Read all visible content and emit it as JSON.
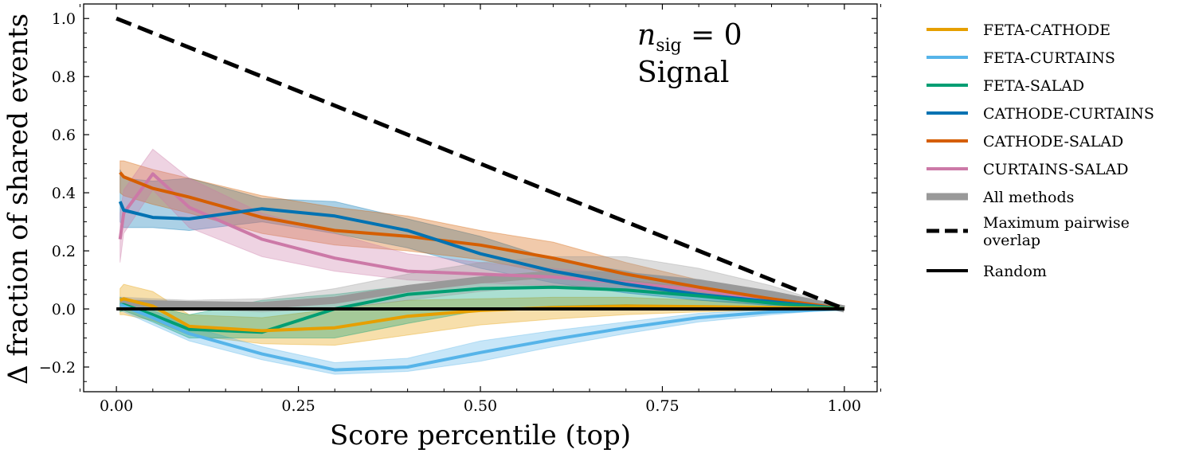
{
  "chart_data": {
    "type": "line",
    "xlabel": "Score percentile (top)",
    "ylabel": "Δ fraction of shared events",
    "xlim": [
      -0.045,
      1.045
    ],
    "ylim": [
      -0.285,
      1.05
    ],
    "xticks": [
      0.0,
      0.25,
      0.5,
      0.75,
      1.0
    ],
    "xtick_labels": [
      "0.00",
      "0.25",
      "0.50",
      "0.75",
      "1.00"
    ],
    "yticks": [
      -0.2,
      0.0,
      0.2,
      0.4,
      0.6,
      0.8,
      1.0
    ],
    "ytick_labels": [
      "−0.2",
      "0.0",
      "0.2",
      "0.4",
      "0.6",
      "0.8",
      "1.0"
    ],
    "annotation": {
      "line1_var": "n",
      "line1_sub": "sig",
      "line1_rest": " = 0",
      "line2": "Signal"
    },
    "grid": false,
    "legend_position": "outside-right",
    "series": [
      {
        "name": "FETA-CATHODE",
        "color": "#E69F00",
        "x": [
          0.005,
          0.01,
          0.05,
          0.1,
          0.2,
          0.3,
          0.4,
          0.5,
          0.6,
          0.7,
          0.8,
          0.9,
          1.0
        ],
        "y": [
          0.03,
          0.035,
          0.01,
          -0.06,
          -0.075,
          -0.065,
          -0.025,
          -0.005,
          0.005,
          0.01,
          0.008,
          0.005,
          0.0
        ],
        "lower": [
          -0.02,
          -0.02,
          -0.04,
          -0.09,
          -0.12,
          -0.125,
          -0.09,
          -0.055,
          -0.035,
          -0.02,
          -0.01,
          -0.005,
          0.0
        ],
        "upper": [
          0.07,
          0.085,
          0.06,
          -0.02,
          -0.03,
          0.0,
          0.03,
          0.035,
          0.04,
          0.04,
          0.03,
          0.02,
          0.0
        ]
      },
      {
        "name": "FETA-CURTAINS",
        "color": "#56B4E9",
        "x": [
          0.005,
          0.01,
          0.05,
          0.1,
          0.2,
          0.3,
          0.4,
          0.5,
          0.6,
          0.7,
          0.8,
          0.9,
          1.0
        ],
        "y": [
          0.015,
          0.01,
          -0.03,
          -0.085,
          -0.155,
          -0.21,
          -0.2,
          -0.15,
          -0.105,
          -0.065,
          -0.03,
          -0.01,
          0.0
        ],
        "lower": [
          -0.005,
          -0.01,
          -0.055,
          -0.11,
          -0.175,
          -0.225,
          -0.215,
          -0.18,
          -0.13,
          -0.085,
          -0.045,
          -0.02,
          0.0
        ],
        "upper": [
          0.03,
          0.03,
          -0.005,
          -0.06,
          -0.13,
          -0.185,
          -0.17,
          -0.11,
          -0.075,
          -0.045,
          -0.015,
          -0.002,
          0.0
        ]
      },
      {
        "name": "FETA-SALAD",
        "color": "#009E73",
        "x": [
          0.005,
          0.01,
          0.05,
          0.1,
          0.2,
          0.3,
          0.4,
          0.5,
          0.6,
          0.7,
          0.8,
          0.9,
          1.0
        ],
        "y": [
          0.015,
          0.015,
          -0.02,
          -0.07,
          -0.08,
          0.0,
          0.05,
          0.07,
          0.075,
          0.065,
          0.045,
          0.02,
          0.0
        ],
        "lower": [
          -0.01,
          -0.005,
          -0.045,
          -0.1,
          -0.1,
          -0.1,
          -0.05,
          -0.005,
          0.01,
          0.015,
          0.01,
          0.005,
          0.0
        ],
        "upper": [
          0.04,
          0.035,
          0.01,
          -0.02,
          0.03,
          0.05,
          0.08,
          0.1,
          0.11,
          0.1,
          0.075,
          0.04,
          0.0
        ]
      },
      {
        "name": "CATHODE-CURTAINS",
        "color": "#0072B2",
        "x": [
          0.005,
          0.01,
          0.05,
          0.1,
          0.2,
          0.3,
          0.4,
          0.5,
          0.6,
          0.7,
          0.8,
          0.9,
          1.0
        ],
        "y": [
          0.37,
          0.34,
          0.315,
          0.31,
          0.345,
          0.32,
          0.27,
          0.19,
          0.13,
          0.085,
          0.05,
          0.025,
          0.0
        ],
        "lower": [
          0.3,
          0.28,
          0.28,
          0.27,
          0.3,
          0.26,
          0.21,
          0.14,
          0.09,
          0.055,
          0.03,
          0.012,
          0.0
        ],
        "upper": [
          0.48,
          0.45,
          0.44,
          0.45,
          0.38,
          0.37,
          0.31,
          0.25,
          0.17,
          0.13,
          0.075,
          0.04,
          0.0
        ]
      },
      {
        "name": "CATHODE-SALAD",
        "color": "#D55E00",
        "x": [
          0.005,
          0.01,
          0.05,
          0.1,
          0.2,
          0.3,
          0.4,
          0.5,
          0.6,
          0.7,
          0.8,
          0.9,
          1.0
        ],
        "y": [
          0.47,
          0.455,
          0.415,
          0.385,
          0.315,
          0.27,
          0.25,
          0.22,
          0.175,
          0.12,
          0.075,
          0.035,
          0.0
        ],
        "lower": [
          0.4,
          0.39,
          0.36,
          0.33,
          0.26,
          0.22,
          0.2,
          0.17,
          0.12,
          0.08,
          0.045,
          0.02,
          0.0
        ],
        "upper": [
          0.51,
          0.51,
          0.48,
          0.45,
          0.39,
          0.35,
          0.32,
          0.27,
          0.23,
          0.16,
          0.1,
          0.05,
          0.0
        ]
      },
      {
        "name": "CURTAINS-SALAD",
        "color": "#CC79A7",
        "x": [
          0.005,
          0.01,
          0.05,
          0.1,
          0.2,
          0.3,
          0.4,
          0.5,
          0.6,
          0.7,
          0.8,
          0.9,
          1.0
        ],
        "y": [
          0.24,
          0.33,
          0.465,
          0.35,
          0.24,
          0.175,
          0.13,
          0.12,
          0.11,
          0.09,
          0.065,
          0.03,
          0.0
        ],
        "lower": [
          0.16,
          0.26,
          0.41,
          0.28,
          0.18,
          0.13,
          0.1,
          0.09,
          0.08,
          0.065,
          0.045,
          0.02,
          0.0
        ],
        "upper": [
          0.33,
          0.41,
          0.55,
          0.45,
          0.33,
          0.26,
          0.19,
          0.16,
          0.14,
          0.12,
          0.09,
          0.045,
          0.0
        ]
      },
      {
        "name": "All methods",
        "color": "#999999",
        "x": [
          0.005,
          0.01,
          0.05,
          0.1,
          0.2,
          0.3,
          0.4,
          0.5,
          0.6,
          0.7,
          0.8,
          0.9,
          1.0
        ],
        "y": [
          0.02,
          0.02,
          0.018,
          0.015,
          0.012,
          0.03,
          0.07,
          0.1,
          0.12,
          0.115,
          0.09,
          0.05,
          0.0
        ],
        "lower": [
          0.0,
          0.0,
          0.0,
          0.0,
          -0.01,
          0.0,
          0.03,
          0.06,
          0.08,
          0.075,
          0.055,
          0.03,
          0.0
        ],
        "upper": [
          0.04,
          0.04,
          0.035,
          0.03,
          0.035,
          0.07,
          0.12,
          0.16,
          0.18,
          0.18,
          0.14,
          0.08,
          0.0
        ]
      },
      {
        "name": "Maximum pairwise overlap",
        "color": "#000000",
        "style": "dashed",
        "x": [
          0.0,
          1.0
        ],
        "y": [
          1.0,
          0.0
        ]
      },
      {
        "name": "Random",
        "color": "#000000",
        "style": "solid",
        "x": [
          0.0,
          1.0
        ],
        "y": [
          0.0,
          0.0
        ]
      }
    ],
    "legend": [
      {
        "label": "FETA-CATHODE",
        "lines": [
          "FETA-CATHODE"
        ],
        "color": "#E69F00",
        "style": "solid"
      },
      {
        "label": "FETA-CURTAINS",
        "lines": [
          "FETA-CURTAINS"
        ],
        "color": "#56B4E9",
        "style": "solid"
      },
      {
        "label": "FETA-SALAD",
        "lines": [
          "FETA-SALAD"
        ],
        "color": "#009E73",
        "style": "solid"
      },
      {
        "label": "CATHODE-CURTAINS",
        "lines": [
          "CATHODE-CURTAINS"
        ],
        "color": "#0072B2",
        "style": "solid"
      },
      {
        "label": "CATHODE-SALAD",
        "lines": [
          "CATHODE-SALAD"
        ],
        "color": "#D55E00",
        "style": "solid"
      },
      {
        "label": "CURTAINS-SALAD",
        "lines": [
          "CURTAINS-SALAD"
        ],
        "color": "#CC79A7",
        "style": "solid"
      },
      {
        "label": "All methods",
        "lines": [
          "All methods"
        ],
        "color": "#999999",
        "style": "thick"
      },
      {
        "label": "Maximum pairwise overlap",
        "lines": [
          "Maximum pairwise",
          "overlap"
        ],
        "color": "#000000",
        "style": "dashed"
      },
      {
        "label": "Random",
        "lines": [
          "Random"
        ],
        "color": "#000000",
        "style": "solid"
      }
    ]
  }
}
